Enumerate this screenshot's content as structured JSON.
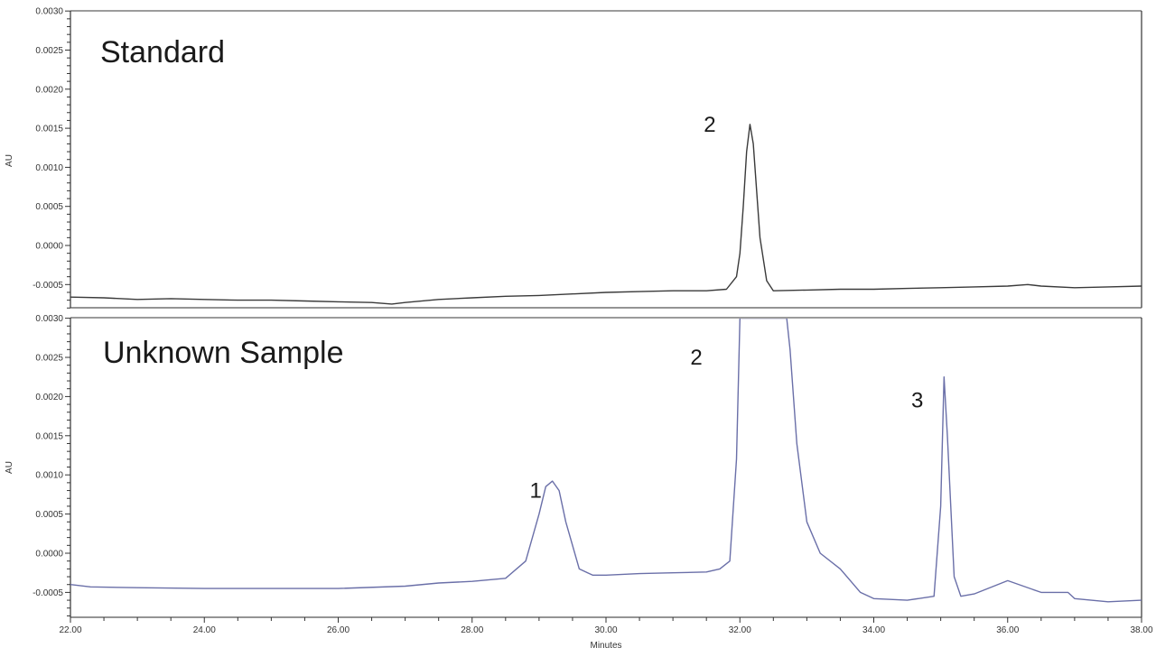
{
  "chart_data": [
    {
      "type": "line",
      "title": "Standard",
      "xlabel": "",
      "ylabel": "AU",
      "xlim": [
        22.0,
        38.0
      ],
      "ylim": [
        -0.0008,
        0.003
      ],
      "yticks": [
        "0.0030",
        "0.0025",
        "0.0020",
        "0.0015",
        "0.0010",
        "0.0005",
        "0.0000",
        "-0.0005"
      ],
      "grid": false,
      "line_color": "#3a3a3a",
      "annotations": [
        {
          "label": "2",
          "x": 31.55,
          "y": 0.00155
        }
      ],
      "series": [
        {
          "name": "Standard",
          "x": [
            22.0,
            22.5,
            23.0,
            23.5,
            24.0,
            24.5,
            25.0,
            25.5,
            26.0,
            26.5,
            26.8,
            27.0,
            27.5,
            28.0,
            28.5,
            29.0,
            29.5,
            30.0,
            30.5,
            31.0,
            31.5,
            31.8,
            31.95,
            32.0,
            32.05,
            32.1,
            32.15,
            32.2,
            32.25,
            32.3,
            32.4,
            32.5,
            33.0,
            33.5,
            34.0,
            34.5,
            35.0,
            35.5,
            36.0,
            36.3,
            36.5,
            37.0,
            37.5,
            38.0
          ],
          "y": [
            -0.00066,
            -0.00067,
            -0.00069,
            -0.00068,
            -0.00069,
            -0.0007,
            -0.0007,
            -0.00071,
            -0.00072,
            -0.00073,
            -0.00075,
            -0.00073,
            -0.00069,
            -0.00067,
            -0.00065,
            -0.00064,
            -0.00062,
            -0.0006,
            -0.00059,
            -0.00058,
            -0.00058,
            -0.00056,
            -0.0004,
            -0.0001,
            0.0005,
            0.0012,
            0.00155,
            0.0013,
            0.0007,
            0.0001,
            -0.00045,
            -0.00058,
            -0.00057,
            -0.00056,
            -0.00056,
            -0.00055,
            -0.00054,
            -0.00053,
            -0.00052,
            -0.0005,
            -0.00052,
            -0.00054,
            -0.00053,
            -0.00052
          ]
        }
      ]
    },
    {
      "type": "line",
      "title": "Unknown Sample",
      "xlabel": "Minutes",
      "ylabel": "AU",
      "xlim": [
        22.0,
        38.0
      ],
      "ylim": [
        -0.0008,
        0.003
      ],
      "xticks": [
        "22.00",
        "24.00",
        "26.00",
        "28.00",
        "30.00",
        "32.00",
        "34.00",
        "36.00",
        "38.00"
      ],
      "yticks": [
        "0.0030",
        "0.0025",
        "0.0020",
        "0.0015",
        "0.0010",
        "0.0005",
        "0.0000",
        "-0.0005"
      ],
      "grid": false,
      "line_color": "#6a6fa8",
      "annotations": [
        {
          "label": "1",
          "x": 28.95,
          "y": 0.0008
        },
        {
          "label": "2",
          "x": 31.35,
          "y": 0.0025
        },
        {
          "label": "3",
          "x": 34.65,
          "y": 0.00195
        }
      ],
      "series": [
        {
          "name": "Unknown Sample",
          "x": [
            22.0,
            22.3,
            23.0,
            24.0,
            25.0,
            26.0,
            27.0,
            27.5,
            28.0,
            28.5,
            28.8,
            29.0,
            29.1,
            29.2,
            29.3,
            29.4,
            29.6,
            29.8,
            30.0,
            30.5,
            31.0,
            31.5,
            31.7,
            31.85,
            31.95,
            32.0,
            32.05,
            32.7,
            32.75,
            32.85,
            33.0,
            33.2,
            33.5,
            33.8,
            34.0,
            34.5,
            34.9,
            35.0,
            35.05,
            35.1,
            35.2,
            35.3,
            35.5,
            36.0,
            36.5,
            36.9,
            37.0,
            37.5,
            38.0
          ],
          "y": [
            -0.0004,
            -0.00043,
            -0.00044,
            -0.00045,
            -0.00045,
            -0.00045,
            -0.00042,
            -0.00038,
            -0.00036,
            -0.00032,
            -0.0001,
            0.0005,
            0.00085,
            0.00092,
            0.0008,
            0.0004,
            -0.0002,
            -0.00028,
            -0.00028,
            -0.00026,
            -0.00025,
            -0.00024,
            -0.0002,
            -0.0001,
            0.0012,
            0.003,
            0.003,
            0.003,
            0.0026,
            0.0014,
            0.0004,
            0.0,
            -0.0002,
            -0.0005,
            -0.00058,
            -0.0006,
            -0.00055,
            0.0006,
            0.00225,
            0.0015,
            -0.0003,
            -0.00055,
            -0.00052,
            -0.00035,
            -0.0005,
            -0.0005,
            -0.00058,
            -0.00062,
            -0.0006
          ]
        }
      ]
    }
  ]
}
